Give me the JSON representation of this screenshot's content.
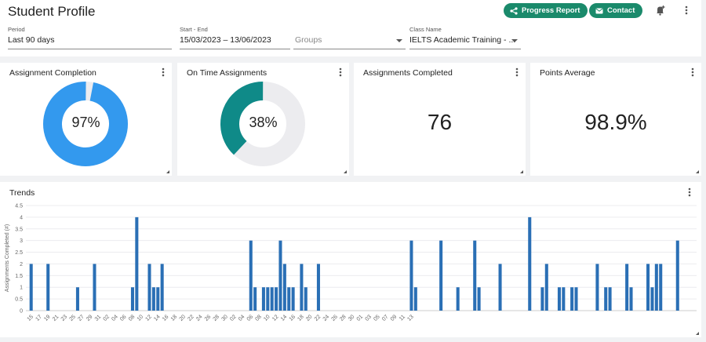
{
  "header": {
    "title": "Student Profile",
    "progress_report_label": "Progress Report",
    "contact_label": "Contact",
    "accent": "#1a8a6b"
  },
  "filters": {
    "period_label": "Period",
    "period_value": "Last 90 days",
    "range_label": "Start - End",
    "range_value": "15/03/2023 – 13/06/2023",
    "groups_placeholder": "Groups",
    "class_label": "Class Name",
    "class_value": "IELTS Academic Training - ..."
  },
  "cards": [
    {
      "title": "Assignment Completion",
      "value": "97%",
      "percent": 97,
      "color": "#3399ee"
    },
    {
      "title": "On Time Assignments",
      "value": "38%",
      "percent": 38,
      "color": "#0f8a88"
    },
    {
      "title": "Assignments Completed",
      "value": "76"
    },
    {
      "title": "Points Average",
      "value": "98.9%"
    }
  ],
  "trends": {
    "title": "Trends",
    "chart_data": {
      "type": "bar",
      "title": "Trends",
      "ylabel": "Assignments Completed (#)",
      "xlabel": "",
      "ylim": [
        0,
        4.5
      ],
      "yticks": [
        "0",
        "0.5",
        "1",
        "1.5",
        "2",
        "2.5",
        "3",
        "3.5",
        "4",
        "4.5"
      ],
      "xtick_labels": [
        "15",
        "17",
        "19",
        "21",
        "23",
        "25",
        "27",
        "29",
        "31",
        "02",
        "04",
        "06",
        "08",
        "10",
        "12",
        "14",
        "16",
        "18",
        "20",
        "22",
        "24",
        "26",
        "28",
        "30",
        "02",
        "04",
        "06",
        "08",
        "10",
        "12",
        "14",
        "16",
        "18",
        "20",
        "22",
        "24",
        "26",
        "28",
        "30",
        "01",
        "03",
        "05",
        "07",
        "09",
        "11",
        "13"
      ],
      "values": [
        2,
        0,
        0,
        0,
        2,
        0,
        0,
        0,
        0,
        0,
        0,
        1,
        0,
        0,
        0,
        2,
        0,
        0,
        0,
        0,
        0,
        0,
        0,
        0,
        1,
        4,
        0,
        0,
        2,
        1,
        1,
        2,
        0,
        0,
        0,
        0,
        0,
        0,
        0,
        0,
        0,
        0,
        0,
        0,
        0,
        0,
        0,
        0,
        0,
        0,
        0,
        0,
        3,
        1,
        0,
        1,
        1,
        1,
        1,
        3,
        2,
        1,
        1,
        0,
        2,
        1,
        0,
        0,
        2,
        0,
        0,
        0,
        0,
        0,
        0,
        0,
        0,
        0,
        0,
        0,
        0,
        0,
        0,
        0,
        0,
        0,
        0,
        0,
        0,
        0,
        3,
        1,
        0,
        0,
        0,
        0,
        0,
        3,
        0,
        0,
        0,
        1,
        0,
        0,
        0,
        3,
        1,
        0,
        0,
        0,
        0,
        2,
        0,
        0,
        0,
        0,
        0,
        0,
        4,
        0,
        0,
        1,
        2,
        0,
        0,
        1,
        1,
        0,
        1,
        1,
        0,
        0,
        0,
        0,
        2,
        0,
        1,
        1,
        0,
        0,
        0,
        2,
        1,
        0,
        0,
        0,
        2,
        1,
        2,
        2,
        0,
        0,
        0,
        3,
        0,
        0,
        0,
        0
      ],
      "color": "#2a6fb5",
      "grid": true
    }
  }
}
